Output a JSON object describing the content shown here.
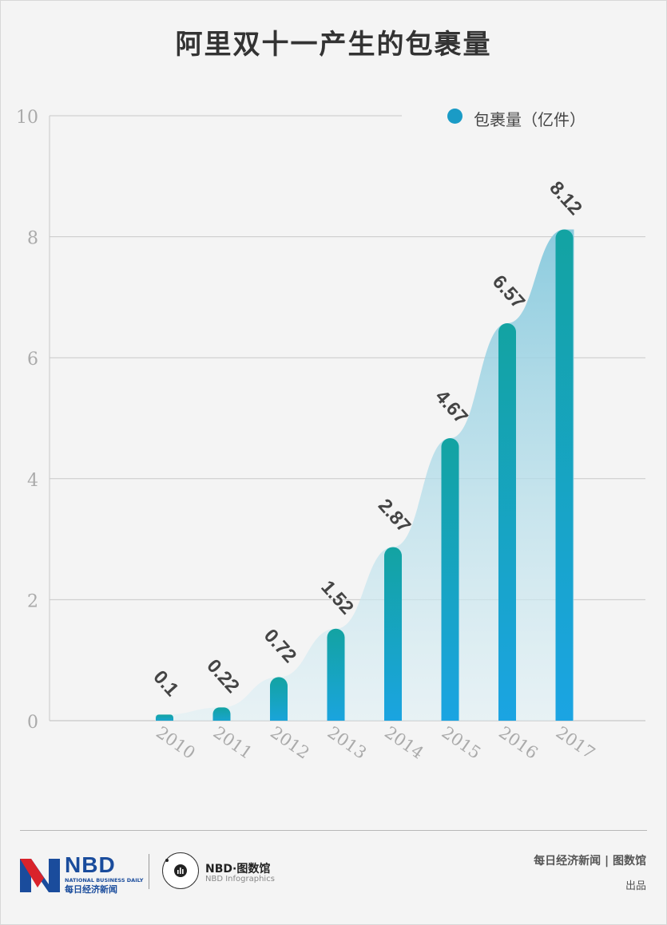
{
  "title": "阿里双十一产生的包裹量",
  "chart_data": {
    "type": "bar",
    "categories": [
      "2010",
      "2011",
      "2012",
      "2013",
      "2014",
      "2015",
      "2016",
      "2017"
    ],
    "series": [
      {
        "name": "包裹量（亿件）",
        "values": [
          0.1,
          0.22,
          0.72,
          1.52,
          2.87,
          4.67,
          6.57,
          8.12
        ]
      }
    ],
    "value_labels": [
      "0.1",
      "0.22",
      "0.72",
      "1.52",
      "2.87",
      "4.67",
      "6.57",
      "8.12"
    ],
    "ylim": [
      0,
      10
    ],
    "yticks": [
      "0",
      "2",
      "4",
      "6",
      "8",
      "10"
    ],
    "grid": true,
    "legend_position": "top-right",
    "colors": {
      "bar_top": "#12a3a6",
      "bar_bottom": "#1aa3e0",
      "area": "#7ec8df",
      "grid": "#c8c8c8",
      "axis_text": "#aaaaaa",
      "value_text": "#444444"
    }
  },
  "legend": {
    "label": "包裹量（亿件）"
  },
  "footer": {
    "brand": "NBD",
    "brand_sub_en": "NATIONAL BUSINESS DAILY",
    "brand_sub_cn": "每日经济新闻",
    "info_brand": "NBD·图数馆",
    "info_sub": "NBD Infographics",
    "credit": "每日经济新闻 | 图数馆",
    "credit2": "出品"
  }
}
